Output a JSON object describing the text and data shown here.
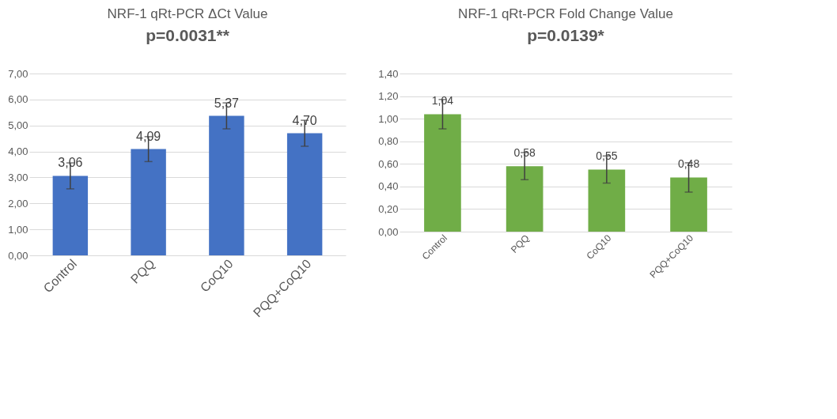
{
  "chart_data": [
    {
      "type": "bar",
      "title": "NRF-1 qRt-PCR ΔCt Value",
      "subtitle": "p=0.0031**",
      "categories": [
        "Control",
        "PQQ",
        "CoQ10",
        "PQQ+CoQ10"
      ],
      "values": [
        3.06,
        4.09,
        5.37,
        4.7
      ],
      "value_labels": [
        "3,06",
        "4,09",
        "5,37",
        "4,70"
      ],
      "errors": [
        0.5,
        0.48,
        0.5,
        0.5
      ],
      "color": "#4472c4",
      "ylim": [
        0,
        7
      ],
      "yticks": [
        {
          "value": 0,
          "label": "0,00"
        },
        {
          "value": 1,
          "label": "1,00"
        },
        {
          "value": 2,
          "label": "2,00"
        },
        {
          "value": 3,
          "label": "3,00"
        },
        {
          "value": 4,
          "label": "4,00"
        },
        {
          "value": 5,
          "label": "5,00"
        },
        {
          "value": 6,
          "label": "6,00"
        },
        {
          "value": 7,
          "label": "7,00"
        }
      ],
      "grid": "y"
    },
    {
      "type": "bar",
      "title": "NRF-1 qRt-PCR Fold Change Value",
      "subtitle": "p=0.0139*",
      "categories": [
        "Control",
        "PQQ",
        "CoQ10",
        "PQQ+CoQ10"
      ],
      "values": [
        1.04,
        0.58,
        0.55,
        0.48
      ],
      "value_labels": [
        "1,04",
        "0,58",
        "0,55",
        "0,48"
      ],
      "errors": [
        0.13,
        0.12,
        0.12,
        0.13
      ],
      "color": "#70ad47",
      "ylim": [
        0,
        1.4
      ],
      "yticks": [
        {
          "value": 0,
          "label": "0,00"
        },
        {
          "value": 0.2,
          "label": "0,20"
        },
        {
          "value": 0.4,
          "label": "0,40"
        },
        {
          "value": 0.6,
          "label": "0,60"
        },
        {
          "value": 0.8,
          "label": "0,80"
        },
        {
          "value": 1,
          "label": "1,00"
        },
        {
          "value": 1.2,
          "label": "1,20"
        },
        {
          "value": 1.4,
          "label": "1,40"
        }
      ],
      "grid": "y"
    }
  ]
}
